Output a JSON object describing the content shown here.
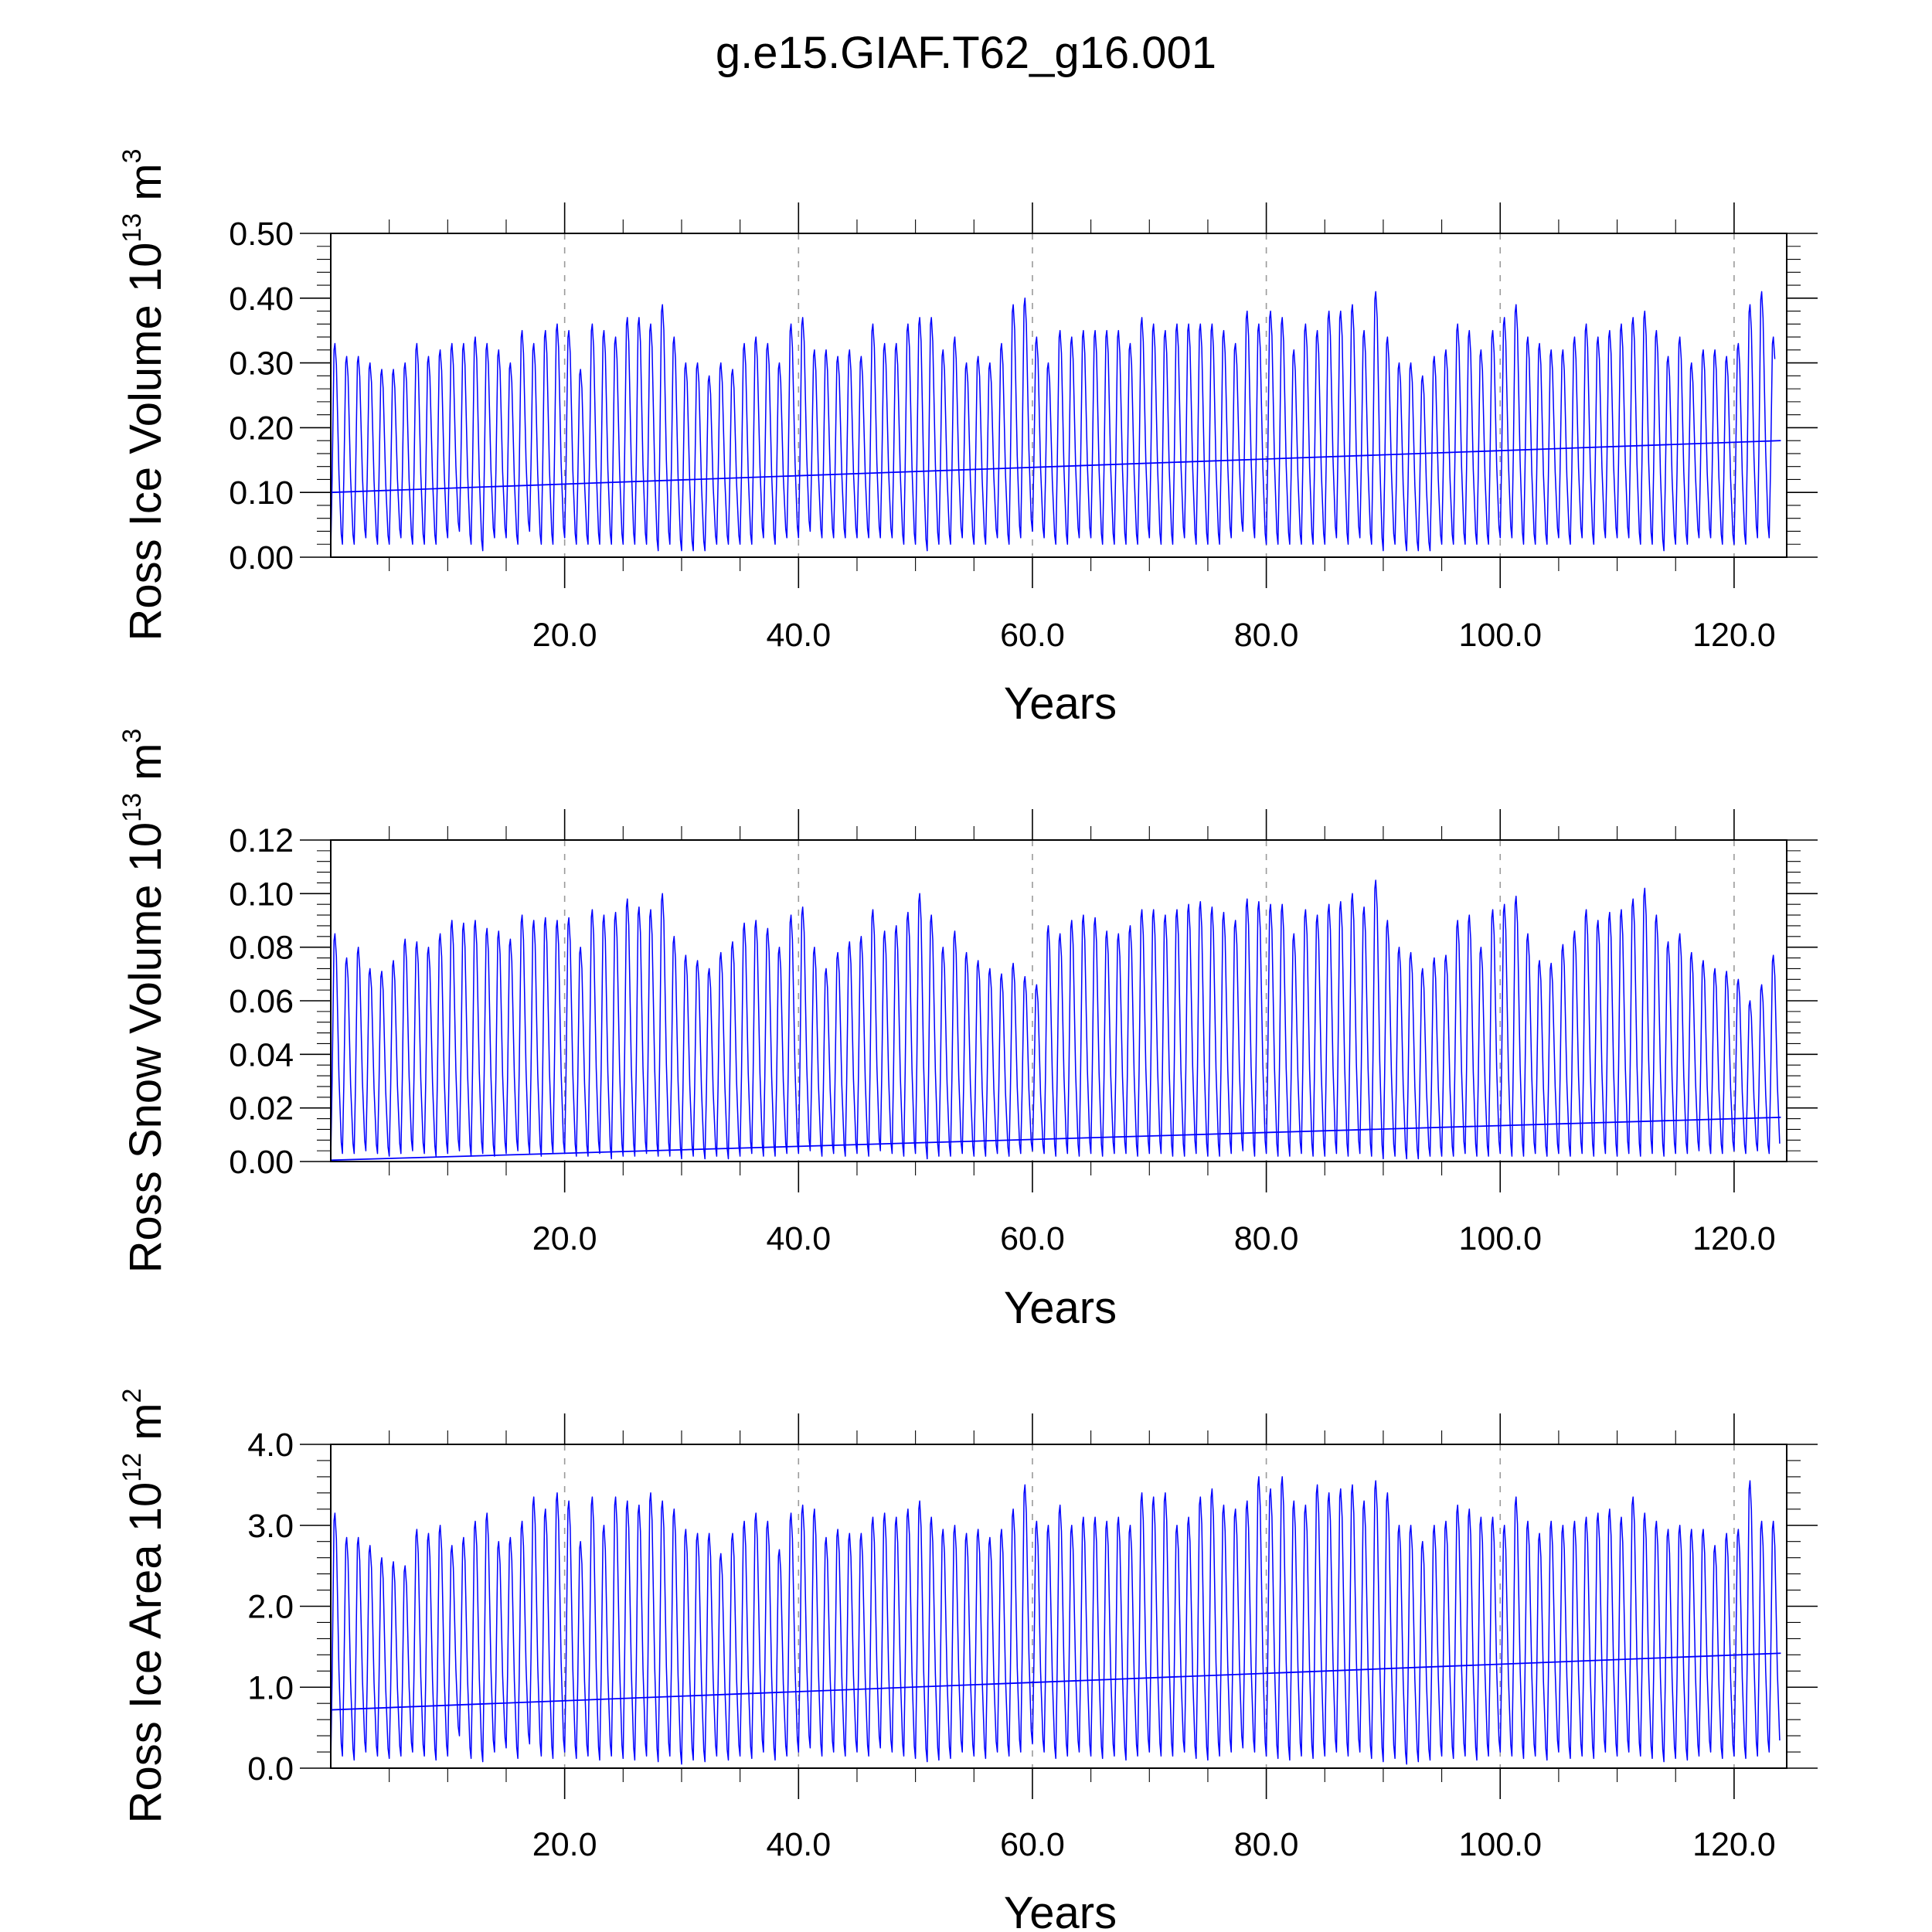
{
  "title": "g.e15.GIAF.T62_g16.001",
  "colors": {
    "series": "#0000ff",
    "axes": "#000000",
    "grid": "#9a9a9a"
  },
  "chart_data": [
    {
      "type": "line",
      "ylabel": {
        "text": "Ross Ice Volume 10",
        "exponent": "13",
        "unit": " m",
        "unit_exponent": "3"
      },
      "xlabel": "Years",
      "xlim": [
        0,
        124.5
      ],
      "ylim": [
        0.0,
        0.5
      ],
      "xticks": [
        "20.0",
        "40.0",
        "60.0",
        "80.0",
        "100.0",
        "120.0"
      ],
      "yticks": [
        "0.00",
        "0.10",
        "0.20",
        "0.30",
        "0.40",
        "0.50"
      ],
      "grid": "vertical dashed at major x ticks",
      "series": [
        {
          "x_start": 0.5,
          "x_step": 1,
          "annual_max": [
            0.33,
            0.31,
            0.31,
            0.3,
            0.29,
            0.29,
            0.3,
            0.33,
            0.31,
            0.32,
            0.33,
            0.33,
            0.34,
            0.33,
            0.32,
            0.3,
            0.35,
            0.33,
            0.35,
            0.36,
            0.35,
            0.29,
            0.36,
            0.35,
            0.34,
            0.37,
            0.37,
            0.36,
            0.39,
            0.34,
            0.3,
            0.3,
            0.28,
            0.3,
            0.29,
            0.33,
            0.34,
            0.33,
            0.3,
            0.36,
            0.37,
            0.32,
            0.32,
            0.31,
            0.32,
            0.31,
            0.36,
            0.33,
            0.33,
            0.36,
            0.37,
            0.37,
            0.32,
            0.34,
            0.3,
            0.31,
            0.3,
            0.33,
            0.39,
            0.4,
            0.34,
            0.3,
            0.35,
            0.34,
            0.35,
            0.35,
            0.35,
            0.35,
            0.33,
            0.37,
            0.36,
            0.35,
            0.36,
            0.36,
            0.36,
            0.36,
            0.35,
            0.33,
            0.38,
            0.36,
            0.38,
            0.37,
            0.32,
            0.36,
            0.35,
            0.38,
            0.38,
            0.39,
            0.35,
            0.41,
            0.34,
            0.3,
            0.3,
            0.28,
            0.31,
            0.32,
            0.36,
            0.35,
            0.32,
            0.35,
            0.37,
            0.39,
            0.34,
            0.33,
            0.32,
            0.32,
            0.34,
            0.36,
            0.34,
            0.35,
            0.36,
            0.37,
            0.38,
            0.35,
            0.31,
            0.34,
            0.3,
            0.32,
            0.32,
            0.31,
            0.33,
            0.39,
            0.41,
            0.34,
            0.32
          ],
          "annual_min": [
            0.01,
            0.02,
            0.02,
            0.03,
            0.02,
            0.02,
            0.03,
            0.02,
            0.02,
            0.02,
            0.03,
            0.04,
            0.02,
            0.01,
            0.03,
            0.03,
            0.02,
            0.04,
            0.02,
            0.02,
            0.03,
            0.02,
            0.02,
            0.02,
            0.02,
            0.02,
            0.02,
            0.02,
            0.01,
            0.02,
            0.01,
            0.01,
            0.01,
            0.02,
            0.02,
            0.02,
            0.02,
            0.03,
            0.02,
            0.03,
            0.03,
            0.04,
            0.03,
            0.03,
            0.03,
            0.03,
            0.03,
            0.03,
            0.03,
            0.02,
            0.02,
            0.01,
            0.02,
            0.02,
            0.03,
            0.02,
            0.02,
            0.03,
            0.02,
            0.03,
            0.04,
            0.03,
            0.02,
            0.02,
            0.03,
            0.03,
            0.02,
            0.02,
            0.02,
            0.02,
            0.03,
            0.02,
            0.02,
            0.03,
            0.02,
            0.02,
            0.02,
            0.03,
            0.04,
            0.03,
            0.02,
            0.02,
            0.02,
            0.02,
            0.02,
            0.02,
            0.03,
            0.02,
            0.03,
            0.02,
            0.01,
            0.02,
            0.01,
            0.01,
            0.01,
            0.02,
            0.02,
            0.02,
            0.02,
            0.02,
            0.03,
            0.03,
            0.02,
            0.02,
            0.02,
            0.03,
            0.02,
            0.03,
            0.02,
            0.03,
            0.03,
            0.03,
            0.02,
            0.02,
            0.01,
            0.02,
            0.02,
            0.03,
            0.03,
            0.02,
            0.02,
            0.02,
            0.03,
            0.03
          ],
          "trend": {
            "x": [
              0.0,
              124.0
            ],
            "y": [
              0.1,
              0.18
            ]
          }
        }
      ]
    },
    {
      "type": "line",
      "ylabel": {
        "text": "Ross Snow Volume 10",
        "exponent": "13",
        "unit": " m",
        "unit_exponent": "3"
      },
      "xlabel": "Years",
      "xlim": [
        0,
        124.5
      ],
      "ylim": [
        0.0,
        0.12
      ],
      "xticks": [
        "20.0",
        "40.0",
        "60.0",
        "80.0",
        "100.0",
        "120.0"
      ],
      "yticks": [
        "0.00",
        "0.02",
        "0.04",
        "0.06",
        "0.08",
        "0.10",
        "0.12"
      ],
      "grid": "vertical dashed at major x ticks",
      "series": [
        {
          "x_start": 0.5,
          "x_step": 1,
          "annual_max": [
            0.085,
            0.076,
            0.08,
            0.072,
            0.071,
            0.075,
            0.083,
            0.082,
            0.08,
            0.085,
            0.09,
            0.089,
            0.09,
            0.087,
            0.086,
            0.083,
            0.092,
            0.09,
            0.091,
            0.09,
            0.091,
            0.08,
            0.094,
            0.092,
            0.093,
            0.098,
            0.095,
            0.094,
            0.1,
            0.084,
            0.077,
            0.075,
            0.072,
            0.078,
            0.082,
            0.089,
            0.09,
            0.087,
            0.08,
            0.092,
            0.095,
            0.08,
            0.072,
            0.078,
            0.082,
            0.084,
            0.094,
            0.086,
            0.088,
            0.093,
            0.1,
            0.092,
            0.08,
            0.086,
            0.078,
            0.075,
            0.072,
            0.07,
            0.074,
            0.069,
            0.066,
            0.088,
            0.085,
            0.09,
            0.092,
            0.091,
            0.086,
            0.085,
            0.088,
            0.094,
            0.094,
            0.092,
            0.094,
            0.096,
            0.097,
            0.095,
            0.093,
            0.09,
            0.098,
            0.097,
            0.096,
            0.096,
            0.085,
            0.094,
            0.092,
            0.096,
            0.097,
            0.1,
            0.095,
            0.105,
            0.09,
            0.08,
            0.078,
            0.072,
            0.076,
            0.077,
            0.09,
            0.092,
            0.08,
            0.094,
            0.096,
            0.099,
            0.085,
            0.075,
            0.074,
            0.081,
            0.086,
            0.094,
            0.09,
            0.093,
            0.094,
            0.098,
            0.102,
            0.092,
            0.082,
            0.085,
            0.078,
            0.075,
            0.072,
            0.071,
            0.068,
            0.06,
            0.066,
            0.077
          ],
          "annual_min": [
            0.001,
            0.003,
            0.003,
            0.004,
            0.003,
            0.002,
            0.003,
            0.004,
            0.003,
            0.002,
            0.003,
            0.004,
            0.002,
            0.003,
            0.002,
            0.003,
            0.004,
            0.003,
            0.002,
            0.003,
            0.003,
            0.002,
            0.002,
            0.003,
            0.001,
            0.002,
            0.002,
            0.003,
            0.002,
            0.002,
            0.001,
            0.002,
            0.001,
            0.002,
            0.001,
            0.002,
            0.003,
            0.002,
            0.002,
            0.003,
            0.003,
            0.004,
            0.002,
            0.003,
            0.002,
            0.003,
            0.002,
            0.004,
            0.003,
            0.002,
            0.003,
            0.001,
            0.002,
            0.002,
            0.003,
            0.002,
            0.002,
            0.003,
            0.002,
            0.003,
            0.004,
            0.003,
            0.002,
            0.003,
            0.002,
            0.003,
            0.002,
            0.003,
            0.003,
            0.002,
            0.003,
            0.003,
            0.002,
            0.002,
            0.003,
            0.002,
            0.002,
            0.003,
            0.004,
            0.002,
            0.003,
            0.002,
            0.002,
            0.003,
            0.002,
            0.002,
            0.003,
            0.002,
            0.003,
            0.002,
            0.001,
            0.002,
            0.001,
            0.001,
            0.002,
            0.002,
            0.002,
            0.003,
            0.002,
            0.002,
            0.003,
            0.002,
            0.002,
            0.003,
            0.002,
            0.003,
            0.002,
            0.003,
            0.002,
            0.003,
            0.002,
            0.003,
            0.002,
            0.003,
            0.002,
            0.003,
            0.003,
            0.004,
            0.003,
            0.003,
            0.004,
            0.003,
            0.004,
            0.003
          ],
          "trend": {
            "x": [
              0.0,
              124.0
            ],
            "y": [
              0.0005,
              0.0165
            ]
          }
        }
      ]
    },
    {
      "type": "line",
      "ylabel": {
        "text": "Ross Ice Area 10",
        "exponent": "12",
        "unit": " m",
        "unit_exponent": "2"
      },
      "xlabel": "Years",
      "xlim": [
        0,
        124.5
      ],
      "ylim": [
        0.0,
        4.0
      ],
      "xticks": [
        "20.0",
        "40.0",
        "60.0",
        "80.0",
        "100.0",
        "120.0"
      ],
      "yticks": [
        "0.0",
        "1.0",
        "2.0",
        "3.0",
        "4.0"
      ],
      "grid": "vertical dashed at major x ticks",
      "series": [
        {
          "x_start": 0.5,
          "x_step": 1,
          "annual_max": [
            3.15,
            2.85,
            2.85,
            2.75,
            2.6,
            2.55,
            2.5,
            2.95,
            2.9,
            3.0,
            2.75,
            2.85,
            3.05,
            3.15,
            2.8,
            2.85,
            3.05,
            3.35,
            3.2,
            3.4,
            3.3,
            2.8,
            3.35,
            3.0,
            3.35,
            3.3,
            3.25,
            3.4,
            3.3,
            3.2,
            2.95,
            2.9,
            2.9,
            2.65,
            2.9,
            3.05,
            3.15,
            3.05,
            2.7,
            3.15,
            3.25,
            3.2,
            2.85,
            2.95,
            2.9,
            2.9,
            3.1,
            3.15,
            3.1,
            3.2,
            3.3,
            3.1,
            2.95,
            3.0,
            2.9,
            2.95,
            2.85,
            2.95,
            3.2,
            3.5,
            3.05,
            3.0,
            3.25,
            3.0,
            3.1,
            3.1,
            3.05,
            3.1,
            3.0,
            3.4,
            3.35,
            3.4,
            3.0,
            3.1,
            3.35,
            3.45,
            3.25,
            3.2,
            3.3,
            3.6,
            3.45,
            3.6,
            3.3,
            3.25,
            3.5,
            3.4,
            3.45,
            3.5,
            3.3,
            3.55,
            3.4,
            3.0,
            3.0,
            2.8,
            3.0,
            3.05,
            3.25,
            3.2,
            3.1,
            3.1,
            3.0,
            3.35,
            3.05,
            2.9,
            3.05,
            3.0,
            3.05,
            3.1,
            3.15,
            3.2,
            3.1,
            3.35,
            3.15,
            3.05,
            2.95,
            3.0,
            2.95,
            2.95,
            2.75,
            2.9,
            2.95,
            3.55,
            3.05,
            3.05
          ],
          "annual_min": [
            0.05,
            0.15,
            0.1,
            0.2,
            0.15,
            0.12,
            0.15,
            0.2,
            0.15,
            0.1,
            0.15,
            0.4,
            0.12,
            0.08,
            0.2,
            0.25,
            0.12,
            0.3,
            0.15,
            0.12,
            0.2,
            0.12,
            0.15,
            0.1,
            0.15,
            0.12,
            0.1,
            0.15,
            0.08,
            0.15,
            0.05,
            0.1,
            0.08,
            0.15,
            0.1,
            0.15,
            0.12,
            0.2,
            0.1,
            0.15,
            0.2,
            0.25,
            0.15,
            0.2,
            0.15,
            0.2,
            0.15,
            0.25,
            0.2,
            0.15,
            0.12,
            0.08,
            0.1,
            0.12,
            0.2,
            0.15,
            0.12,
            0.2,
            0.15,
            0.2,
            0.3,
            0.2,
            0.12,
            0.15,
            0.2,
            0.15,
            0.12,
            0.15,
            0.1,
            0.15,
            0.2,
            0.15,
            0.15,
            0.2,
            0.12,
            0.1,
            0.15,
            0.2,
            0.25,
            0.2,
            0.15,
            0.12,
            0.1,
            0.15,
            0.12,
            0.15,
            0.2,
            0.15,
            0.2,
            0.12,
            0.08,
            0.12,
            0.05,
            0.08,
            0.1,
            0.15,
            0.12,
            0.15,
            0.1,
            0.15,
            0.2,
            0.15,
            0.12,
            0.15,
            0.1,
            0.2,
            0.12,
            0.15,
            0.12,
            0.2,
            0.15,
            0.2,
            0.15,
            0.12,
            0.08,
            0.12,
            0.1,
            0.15,
            0.2,
            0.12,
            0.15,
            0.12,
            0.15,
            0.2
          ],
          "trend": {
            "x": [
              0.0,
              124.0
            ],
            "y": [
              0.72,
              1.42
            ]
          }
        }
      ]
    }
  ]
}
